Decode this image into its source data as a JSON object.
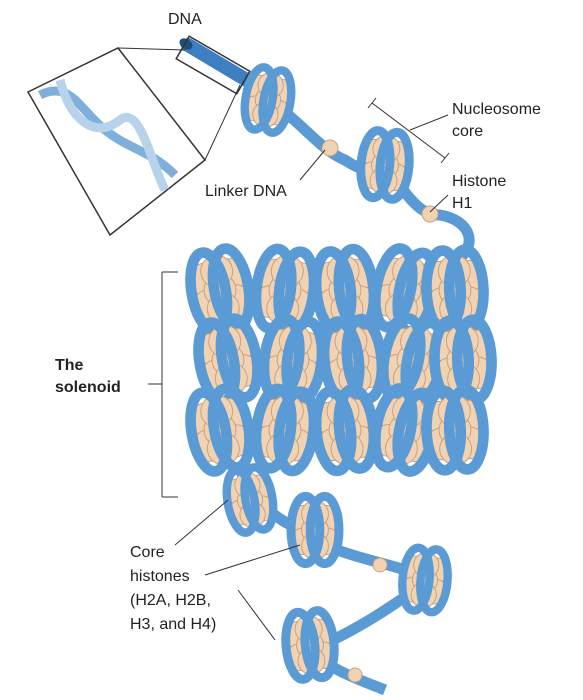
{
  "labels": {
    "dna": "DNA",
    "nucleosome_core": [
      "Nucleosome",
      "core"
    ],
    "linker_dna": "Linker DNA",
    "histone_h1": [
      "Histone",
      "H1"
    ],
    "solenoid": [
      "The",
      "solenoid"
    ],
    "core_histones": [
      "Core",
      "histones",
      "(H2A, H2B,",
      "H3, and H4)"
    ]
  }
}
